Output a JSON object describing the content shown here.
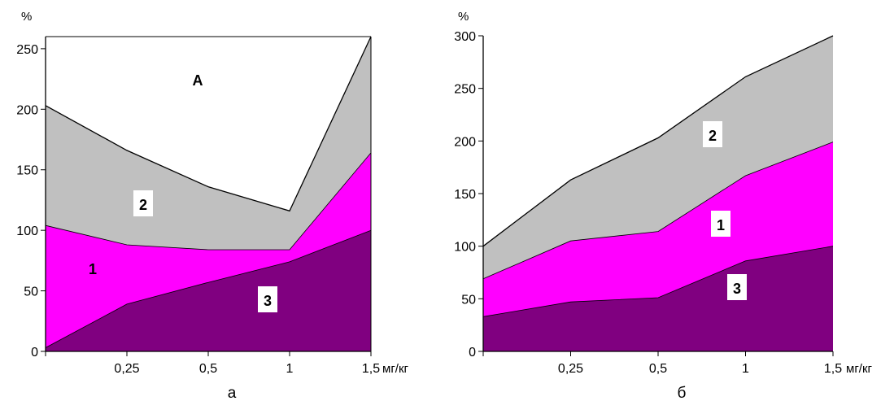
{
  "chart_data": [
    {
      "type": "area",
      "panel_label": "а",
      "ylabel": "%",
      "x_unit": "мг/кг",
      "x_tick_labels": [
        "0,25",
        "0,5",
        "1",
        "1,5"
      ],
      "y_ticks": [
        0,
        50,
        100,
        150,
        200,
        250
      ],
      "ylim": [
        0,
        260
      ],
      "series_boundaries": [
        {
          "name": "3",
          "values": [
            3,
            39,
            57,
            74,
            100
          ],
          "fill": "#800080"
        },
        {
          "name": "1",
          "values": [
            104,
            88,
            84,
            84,
            164
          ],
          "fill": "#ff00ff"
        },
        {
          "name": "2",
          "values": [
            203,
            166,
            136,
            116,
            260
          ],
          "fill": "#c0c0c0"
        }
      ],
      "annotations": [
        "А",
        "2",
        "1",
        "3"
      ]
    },
    {
      "type": "area",
      "panel_label": "б",
      "ylabel": "%",
      "x_unit": "мг/кг",
      "x_tick_labels": [
        "0,25",
        "0,5",
        "1",
        "1,5"
      ],
      "y_ticks": [
        0,
        50,
        100,
        150,
        200,
        250,
        300
      ],
      "ylim": [
        0,
        300
      ],
      "series_boundaries": [
        {
          "name": "3",
          "values": [
            33,
            47,
            51,
            86,
            100
          ],
          "fill": "#800080"
        },
        {
          "name": "1",
          "values": [
            69,
            105,
            114,
            167,
            199
          ],
          "fill": "#ff00ff"
        },
        {
          "name": "2",
          "values": [
            100,
            163,
            203,
            261,
            300
          ],
          "fill": "#c0c0c0"
        }
      ],
      "annotations": [
        "2",
        "1",
        "3"
      ]
    }
  ]
}
